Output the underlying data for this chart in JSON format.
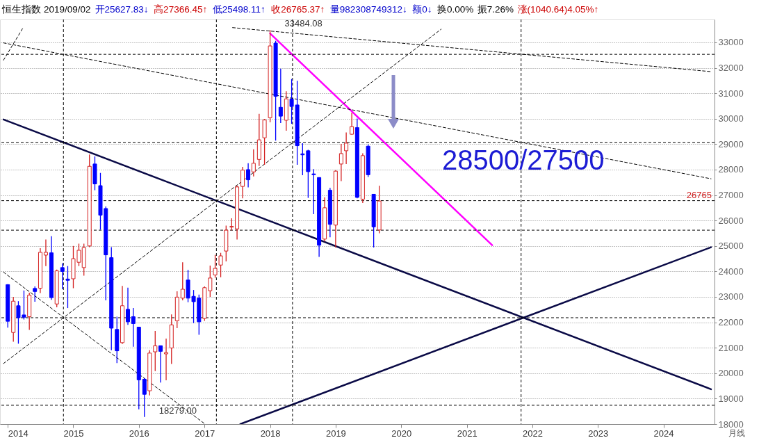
{
  "chart_data": {
    "type": "candlestick",
    "title": "恒生指数",
    "subtitle": "2019/09/02",
    "x": [
      "2014-01",
      "2014-02",
      "2014-03",
      "2014-04",
      "2014-05",
      "2014-06",
      "2014-07",
      "2014-08",
      "2014-09",
      "2014-10",
      "2014-11",
      "2014-12",
      "2015-01",
      "2015-02",
      "2015-03",
      "2015-04",
      "2015-05",
      "2015-06",
      "2015-07",
      "2015-08",
      "2015-09",
      "2015-10",
      "2015-11",
      "2015-12",
      "2016-01",
      "2016-02",
      "2016-03",
      "2016-04",
      "2016-05",
      "2016-06",
      "2016-07",
      "2016-08",
      "2016-09",
      "2016-10",
      "2016-11",
      "2016-12",
      "2017-01",
      "2017-02",
      "2017-03",
      "2017-04",
      "2017-05",
      "2017-06",
      "2017-07",
      "2017-08",
      "2017-09",
      "2017-10",
      "2017-11",
      "2017-12",
      "2018-01",
      "2018-02",
      "2018-03",
      "2018-04",
      "2018-05",
      "2018-06",
      "2018-07",
      "2018-08",
      "2018-09",
      "2018-10",
      "2018-11",
      "2018-12",
      "2019-01",
      "2019-02",
      "2019-03",
      "2019-04",
      "2019-05",
      "2019-06",
      "2019-07",
      "2019-08",
      "2019-09"
    ],
    "ohlc": [
      [
        23480,
        23500,
        21790,
        22040
      ],
      [
        21600,
        23000,
        21240,
        22830
      ],
      [
        22650,
        22830,
        21160,
        22180
      ],
      [
        22290,
        23250,
        22110,
        22200
      ],
      [
        22220,
        23160,
        21700,
        23070
      ],
      [
        23330,
        23410,
        22810,
        23210
      ],
      [
        23340,
        24910,
        23150,
        24750
      ],
      [
        24640,
        25250,
        24210,
        24750
      ],
      [
        24730,
        25380,
        22880,
        22970
      ],
      [
        22720,
        24070,
        22590,
        24020
      ],
      [
        24150,
        24320,
        23300,
        24000
      ],
      [
        23700,
        24210,
        22560,
        23650
      ],
      [
        23710,
        25000,
        23340,
        24500
      ],
      [
        24360,
        25090,
        24210,
        24830
      ],
      [
        24150,
        25090,
        23830,
        24940
      ],
      [
        25000,
        28590,
        24950,
        28130
      ],
      [
        28220,
        28520,
        27190,
        27440
      ],
      [
        27370,
        27870,
        25640,
        26210
      ],
      [
        26470,
        26550,
        22860,
        24650
      ],
      [
        24540,
        24950,
        20900,
        21770
      ],
      [
        21720,
        22220,
        20400,
        20880
      ],
      [
        21200,
        23430,
        21150,
        22650
      ],
      [
        22510,
        23360,
        21900,
        22020
      ],
      [
        22220,
        22560,
        21040,
        21950
      ],
      [
        21810,
        21820,
        18580,
        19740
      ],
      [
        19760,
        19800,
        18279,
        19170
      ],
      [
        19310,
        20900,
        19130,
        20790
      ],
      [
        20840,
        21660,
        20080,
        21080
      ],
      [
        21080,
        21090,
        19630,
        20860
      ],
      [
        20760,
        21360,
        19720,
        20810
      ],
      [
        20990,
        22310,
        20360,
        21900
      ],
      [
        22060,
        23220,
        21770,
        22990
      ],
      [
        22950,
        24360,
        22860,
        23300
      ],
      [
        23660,
        24060,
        22790,
        22950
      ],
      [
        23020,
        23270,
        21970,
        22810
      ],
      [
        22950,
        23090,
        21510,
        22020
      ],
      [
        22150,
        23410,
        22060,
        23360
      ],
      [
        23240,
        24230,
        23000,
        23740
      ],
      [
        23860,
        24650,
        23750,
        24120
      ],
      [
        24250,
        24730,
        23770,
        24610
      ],
      [
        24800,
        25800,
        24390,
        25620
      ],
      [
        25740,
        26090,
        25610,
        25770
      ],
      [
        25670,
        27370,
        25250,
        27320
      ],
      [
        27340,
        28110,
        26870,
        27980
      ],
      [
        28000,
        28250,
        27300,
        27600
      ],
      [
        27910,
        28800,
        27730,
        28250
      ],
      [
        28400,
        30190,
        28140,
        29170
      ],
      [
        29250,
        29990,
        28190,
        29950
      ],
      [
        30040,
        33484.08,
        29860,
        32860
      ],
      [
        32970,
        33060,
        29140,
        30880
      ],
      [
        30450,
        31970,
        29830,
        30100
      ],
      [
        29940,
        31080,
        29530,
        30780
      ],
      [
        30770,
        31560,
        29800,
        30480
      ],
      [
        30540,
        31490,
        28190,
        28940
      ],
      [
        28620,
        29040,
        27780,
        28580
      ],
      [
        28740,
        28780,
        26890,
        27920
      ],
      [
        27830,
        28020,
        26250,
        27800
      ],
      [
        27690,
        27700,
        24570,
        25030
      ],
      [
        25270,
        26910,
        25180,
        26500
      ],
      [
        27190,
        27280,
        25340,
        25850
      ],
      [
        25820,
        27980,
        24940,
        27940
      ],
      [
        28220,
        29010,
        27550,
        28630
      ],
      [
        28740,
        29460,
        28220,
        29040
      ],
      [
        29390,
        30240,
        29380,
        29690
      ],
      [
        29650,
        30010,
        26870,
        26910
      ],
      [
        26840,
        28640,
        26690,
        28550
      ],
      [
        28920,
        28990,
        27710,
        27800
      ],
      [
        27030,
        27040,
        24940,
        25750
      ],
      [
        25627.83,
        27366.45,
        25498.11,
        26765.37
      ]
    ],
    "colors": [
      "#0000ff",
      "#d42020",
      "#0000ff",
      "#0000ff",
      "#d42020",
      "#0000ff",
      "#d42020",
      "#d42020",
      "#0000ff",
      "#d42020",
      "#0000ff",
      "#0000ff",
      "#d42020",
      "#d42020",
      "#d42020",
      "#d42020",
      "#0000ff",
      "#0000ff",
      "#0000ff",
      "#0000ff",
      "#0000ff",
      "#d42020",
      "#0000ff",
      "#0000ff",
      "#0000ff",
      "#0000ff",
      "#d42020",
      "#d42020",
      "#0000ff",
      "#d42020",
      "#d42020",
      "#d42020",
      "#d42020",
      "#0000ff",
      "#0000ff",
      "#0000ff",
      "#d42020",
      "#d42020",
      "#d42020",
      "#d42020",
      "#d42020",
      "#d42020",
      "#d42020",
      "#d42020",
      "#0000ff",
      "#d42020",
      "#d42020",
      "#d42020",
      "#d42020",
      "#0000ff",
      "#0000ff",
      "#d42020",
      "#0000ff",
      "#0000ff",
      "#0000ff",
      "#0000ff",
      "#0000ff",
      "#0000ff",
      "#d42020",
      "#0000ff",
      "#d42020",
      "#d42020",
      "#d42020",
      "#d42020",
      "#0000ff",
      "#d42020",
      "#0000ff",
      "#0000ff",
      "#d42020"
    ],
    "series": [
      {
        "type": "line",
        "color": "#0a0a46",
        "line_style": "solid",
        "x": [
          "2013-12-08",
          "2024-09-22"
        ],
        "values": [
          29970,
          19370
        ]
      },
      {
        "type": "line",
        "color": "#0a0a46",
        "line_style": "solid",
        "x": [
          "2017-07-19",
          "2024-09-22"
        ],
        "values": [
          18000,
          24950
        ]
      },
      {
        "type": "line",
        "color": "#ff00ff",
        "line_style": "solid",
        "x": [
          "2018-01",
          "2021-05-22"
        ],
        "values": [
          33350,
          25030
        ]
      },
      {
        "type": "line",
        "color": "#000000",
        "line_style": "dashed",
        "x": [
          "2013-12-08",
          "2020-08-11"
        ],
        "values": [
          20380,
          33520
        ]
      },
      {
        "type": "line",
        "color": "#000000",
        "line_style": "dashed",
        "x": [
          "2013-12-08",
          "2017-01-04"
        ],
        "values": [
          23970,
          18000
        ]
      },
      {
        "type": "line",
        "color": "#000000",
        "line_style": "dashed",
        "x": [
          "2017-06-06",
          "2024-09-22"
        ],
        "values": [
          33580,
          31850
        ]
      },
      {
        "type": "line",
        "color": "#000000",
        "line_style": "dashed",
        "x": [
          "2013-12-08",
          "2024-09-22"
        ],
        "values": [
          32980,
          27640
        ]
      },
      {
        "type": "line",
        "color": "#000000",
        "line_style": "dashed",
        "x": [
          "2013-12-08",
          "2014-03-25"
        ],
        "values": [
          32300,
          33550
        ]
      }
    ],
    "ref_lines": [
      {
        "axis": "y",
        "value": 32530,
        "color": "#000000",
        "line_style": "dashed"
      },
      {
        "axis": "y",
        "value": 29070,
        "color": "#000000",
        "line_style": "dashed"
      },
      {
        "axis": "y",
        "value": 26780,
        "color": "#000000",
        "line_style": "dashed"
      },
      {
        "axis": "y",
        "value": 25620,
        "color": "#000000",
        "line_style": "dashed"
      },
      {
        "axis": "y",
        "value": 22180,
        "color": "#000000",
        "line_style": "dashed"
      },
      {
        "axis": "y",
        "value": 18740,
        "color": "#000000",
        "line_style": "dashed"
      },
      {
        "axis": "x",
        "value": "2014-11-07",
        "color": "#000000",
        "line_style": "dashed"
      },
      {
        "axis": "x",
        "value": "2017-03-08",
        "color": "#000000",
        "line_style": "dashed"
      },
      {
        "axis": "x",
        "value": "2018-05-06",
        "color": "#000000",
        "line_style": "dashed"
      },
      {
        "axis": "x",
        "value": "2021-10-30",
        "color": "#000000",
        "line_style": "dashed"
      }
    ],
    "annotations": [
      "开25627.83↓",
      "高27366.45↑",
      "低25498.11↑",
      "收26765.37↑",
      "量982308749312↓",
      "额0↓",
      "换0.00%",
      "振7.26%",
      "涨(1040.64)4.05%↑",
      "28500/27500",
      "月线",
      {
        "text": "33484.08",
        "x": "2018-01",
        "y": 33484.08
      },
      {
        "text": "18279.00",
        "x": "2016-02",
        "y": 18279
      },
      {
        "text": "26765",
        "y": 26765
      }
    ],
    "xlim": [
      "2013-12-08",
      "2024-09-22"
    ],
    "ylim": [
      18000,
      33900
    ],
    "xticks": [
      "2014",
      "2015",
      "2016",
      "2017",
      "2018",
      "2019",
      "2020",
      "2021",
      "2022",
      "2023",
      "2024"
    ],
    "yticks": [
      18000,
      19000,
      20000,
      21000,
      22000,
      23000,
      24000,
      25000,
      26000,
      27000,
      28000,
      29000,
      30000,
      31000,
      32000,
      33000
    ],
    "grid": "y"
  }
}
